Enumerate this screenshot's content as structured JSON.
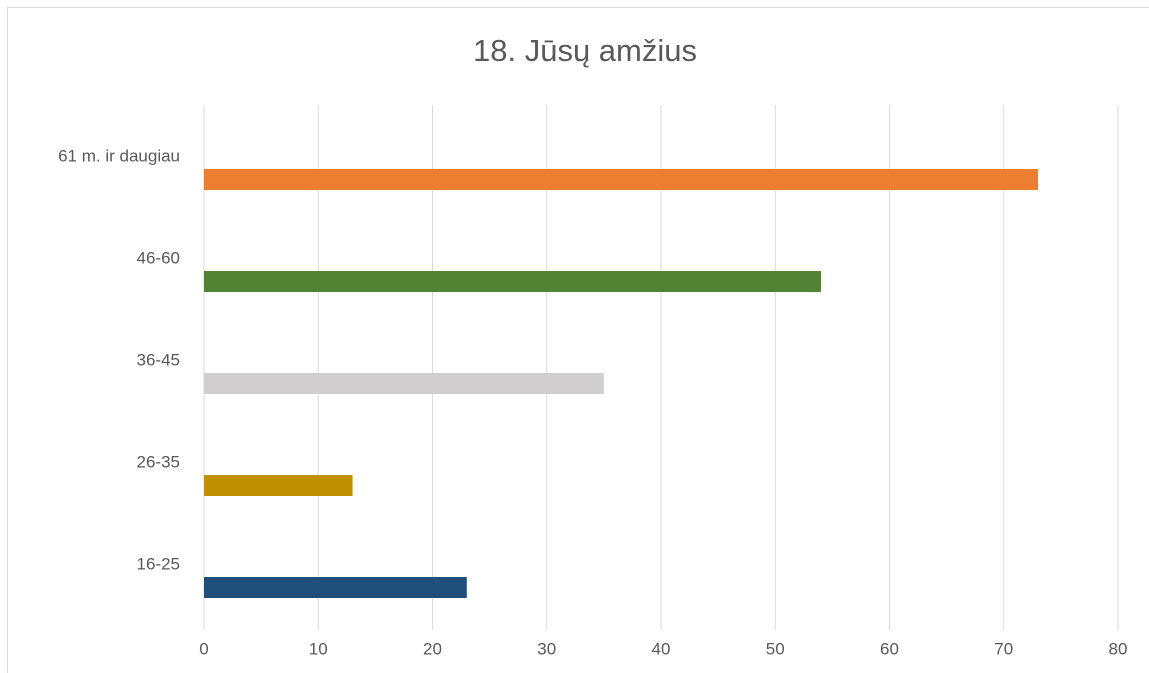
{
  "chart_data": {
    "type": "hbar",
    "title": "18. Jūsų amžius",
    "categories": [
      "16-25",
      "26-35",
      "36-45",
      "46-60",
      "61 m. ir daugiau"
    ],
    "values": [
      23,
      13,
      35,
      54,
      73
    ],
    "colors": [
      "#1f4e79",
      "#bf9000",
      "#d0cece",
      "#548235",
      "#ed7d31"
    ],
    "xlim": [
      0,
      80
    ],
    "xticks": [
      0,
      10,
      20,
      30,
      40,
      50,
      60,
      70,
      80
    ],
    "grid": true
  }
}
